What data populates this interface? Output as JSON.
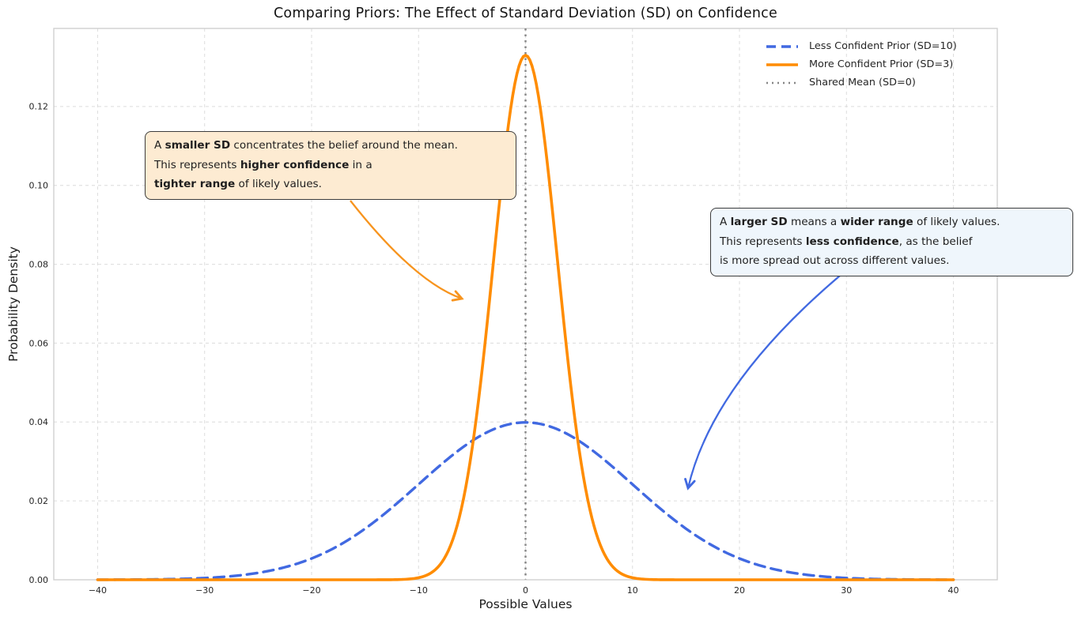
{
  "chart_data": {
    "type": "line",
    "title": "Comparing Priors: The Effect of Standard Deviation (SD) on Confidence",
    "xlabel": "Possible Values",
    "ylabel": "Probability Density",
    "xlim": [
      -44.1,
      44.1
    ],
    "ylim": [
      0,
      0.1398
    ],
    "xticks": [
      -40,
      -30,
      -20,
      -10,
      0,
      10,
      20,
      30,
      40
    ],
    "yticks": [
      0.0,
      0.02,
      0.04,
      0.06,
      0.08,
      0.1,
      0.12
    ],
    "grid": true,
    "grid_style": "dashed",
    "legend_position": "upper right",
    "series": [
      {
        "name": "Less Confident Prior (SD=10)",
        "distribution": "normal",
        "mean": 0,
        "sd": 10,
        "x_range": [
          -40,
          40
        ],
        "peak_density": 0.0399,
        "color": "#4169E1",
        "line_style": "dashed",
        "line_width": 3.4
      },
      {
        "name": "More Confident Prior (SD=3)",
        "distribution": "normal",
        "mean": 0,
        "sd": 3,
        "x_range": [
          -40,
          40
        ],
        "peak_density": 0.133,
        "color": "#FF8C00",
        "line_style": "solid",
        "line_width": 3.6
      },
      {
        "name": "Shared Mean (SD=0)",
        "distribution": "vline",
        "x": 0,
        "color": "#868686",
        "line_style": "dotted",
        "line_width": 2.4
      }
    ]
  },
  "annotations": {
    "left": {
      "bg": "#FDEBD2",
      "arrow_color": "#F7941E",
      "lines": [
        [
          {
            "t": "A ",
            "b": 0
          },
          {
            "t": "smaller SD",
            "b": 1
          },
          {
            "t": " concentrates the belief around the mean.",
            "b": 0
          }
        ],
        [
          {
            "t": "This represents ",
            "b": 0
          },
          {
            "t": "higher confidence",
            "b": 1
          },
          {
            "t": " in a",
            "b": 0
          }
        ],
        [
          {
            "t": "tighter range",
            "b": 1
          },
          {
            "t": " of likely values.",
            "b": 0
          }
        ]
      ]
    },
    "right": {
      "bg": "#EFF6FC",
      "arrow_color": "#4169E1",
      "lines": [
        [
          {
            "t": "A ",
            "b": 0
          },
          {
            "t": "larger SD",
            "b": 1
          },
          {
            "t": " means a ",
            "b": 0
          },
          {
            "t": "wider range",
            "b": 1
          },
          {
            "t": " of likely values.",
            "b": 0
          }
        ],
        [
          {
            "t": "This represents ",
            "b": 0
          },
          {
            "t": "less confidence",
            "b": 1
          },
          {
            "t": ", as the belief",
            "b": 0
          }
        ],
        [
          {
            "t": "is more spread out across different values.",
            "b": 0
          }
        ]
      ]
    }
  },
  "style": {
    "grid_color": "#dcdcdc",
    "spine_color": "#cfcfcf",
    "tick_label_color": "#262626"
  }
}
